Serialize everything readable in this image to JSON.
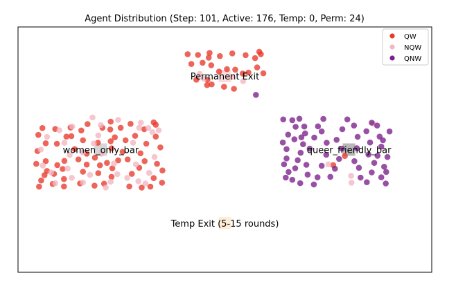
{
  "chart_data": {
    "type": "scatter",
    "title": "Agent Distribution (Step: 101, Active: 176, Temp: 0, Perm: 24)",
    "xlabel": "",
    "ylabel": "",
    "xlim": [
      0,
      100
    ],
    "ylim": [
      0,
      100
    ],
    "grid": false,
    "legend": {
      "placement": "top-right",
      "entries": [
        {
          "label": "QW",
          "color": "#e8392b"
        },
        {
          "label": "NQW",
          "color": "#f4b6c2"
        },
        {
          "label": "QNW",
          "color": "#7b1f8a"
        }
      ]
    },
    "regions": [
      {
        "label": "Permanent Exit",
        "x": 50,
        "y": 80,
        "color": "#f8d0d0"
      },
      {
        "label": "women_only_bar",
        "x": 20,
        "y": 50,
        "color": "#c8c8c8"
      },
      {
        "label": "queer_friendly_bar",
        "x": 80,
        "y": 50,
        "color": "#a0a0a0"
      },
      {
        "label": "Temp Exit (5-15 rounds)",
        "x": 50,
        "y": 20,
        "color": "#fde6c8"
      }
    ],
    "series": [
      {
        "name": "QW",
        "color": "#e8392b",
        "points": [
          [
            41.0,
            88.9
          ],
          [
            43.5,
            88.6
          ],
          [
            46.1,
            87.5
          ],
          [
            46.3,
            89.4
          ],
          [
            48.8,
            88.1
          ],
          [
            51.8,
            89.2
          ],
          [
            55.0,
            88.5
          ],
          [
            57.3,
            87.3
          ],
          [
            58.3,
            89.9
          ],
          [
            58.7,
            88.9
          ],
          [
            41.9,
            84.9
          ],
          [
            44.6,
            85.4
          ],
          [
            46.7,
            84.4
          ],
          [
            48.6,
            81.8
          ],
          [
            50.5,
            82.8
          ],
          [
            52.5,
            82.6
          ],
          [
            54.3,
            81.0
          ],
          [
            55.7,
            81.4
          ],
          [
            57.8,
            83.5
          ],
          [
            59.3,
            81.1
          ],
          [
            43.1,
            78.5
          ],
          [
            45.8,
            78.5
          ],
          [
            46.8,
            76.6
          ],
          [
            49.8,
            75.6
          ],
          [
            52.2,
            74.8
          ],
          [
            45.7,
            76.3
          ],
          [
            22.4,
            61.4
          ],
          [
            22.3,
            58.2
          ],
          [
            22.4,
            53.4
          ],
          [
            22.6,
            50.5
          ],
          [
            21.5,
            44.6
          ],
          [
            22.8,
            42.4
          ],
          [
            19.4,
            40.4
          ],
          [
            19.8,
            43.6
          ],
          [
            18.6,
            46.7
          ],
          [
            19.3,
            52.8
          ],
          [
            20.4,
            58.9
          ],
          [
            16.8,
            60.4
          ],
          [
            15.3,
            57.8
          ],
          [
            15.7,
            53.8
          ],
          [
            16.6,
            48.3
          ],
          [
            16.6,
            43.9
          ],
          [
            15.7,
            41.0
          ],
          [
            14.6,
            46.0
          ],
          [
            13.7,
            50.2
          ],
          [
            12.9,
            55.5
          ],
          [
            12.7,
            59.0
          ],
          [
            11.7,
            55.3
          ],
          [
            11.2,
            45.4
          ],
          [
            10.8,
            42.1
          ],
          [
            11.1,
            38.0
          ],
          [
            8.7,
            40.1
          ],
          [
            9.5,
            43.7
          ],
          [
            9.4,
            52.4
          ],
          [
            9.0,
            58.4
          ],
          [
            5.9,
            58.8
          ],
          [
            6.7,
            52.6
          ],
          [
            6.7,
            45.3
          ],
          [
            7.0,
            41.3
          ],
          [
            5.6,
            37.4
          ],
          [
            5.1,
            34.9
          ],
          [
            6.4,
            39.6
          ],
          [
            4.4,
            44.2
          ],
          [
            4.7,
            49.4
          ],
          [
            22.6,
            38.9
          ],
          [
            24.2,
            45.6
          ],
          [
            23.4,
            55.0
          ],
          [
            25.3,
            49.1
          ],
          [
            26.0,
            53.8
          ],
          [
            24.8,
            58.9
          ],
          [
            26.5,
            46.0
          ],
          [
            27.5,
            40.1
          ],
          [
            27.2,
            60.5
          ],
          [
            28.3,
            55.6
          ],
          [
            29.6,
            48.5
          ],
          [
            29.3,
            42.6
          ],
          [
            30.5,
            58.3
          ],
          [
            31.0,
            52.4
          ],
          [
            30.6,
            45.3
          ],
          [
            32.8,
            61.1
          ],
          [
            32.8,
            38.4
          ],
          [
            33.6,
            44.2
          ],
          [
            33.3,
            55.3
          ],
          [
            34.4,
            50.9
          ],
          [
            33.3,
            60.1
          ],
          [
            34.9,
            41.5
          ],
          [
            34.8,
            36.5
          ],
          [
            32.0,
            34.9
          ],
          [
            29.9,
            34.5
          ],
          [
            26.9,
            35.0
          ],
          [
            20.8,
            36.1
          ],
          [
            18.5,
            35.3
          ],
          [
            15.0,
            36.2
          ],
          [
            11.1,
            35.0
          ],
          [
            8.4,
            36.0
          ],
          [
            4.9,
            56.0
          ],
          [
            76.2,
            43.7
          ],
          [
            79.0,
            47.4
          ]
        ]
      },
      {
        "name": "NQW",
        "color": "#f4b6c2",
        "points": [
          [
            44.9,
            78.9
          ],
          [
            51.7,
            79.5
          ],
          [
            54.4,
            77.9
          ],
          [
            43.9,
            80.9
          ],
          [
            24.2,
            62.1
          ],
          [
            29.7,
            61.0
          ],
          [
            31.5,
            58.8
          ],
          [
            32.5,
            57.1
          ],
          [
            29.3,
            58.9
          ],
          [
            19.4,
            55.8
          ],
          [
            13.1,
            59.4
          ],
          [
            12.0,
            42.3
          ],
          [
            15.7,
            36.6
          ],
          [
            21.2,
            34.5
          ],
          [
            22.4,
            36.9
          ],
          [
            29.1,
            37.1
          ],
          [
            8.0,
            40.7
          ],
          [
            7.0,
            55.2
          ],
          [
            11.2,
            52.8
          ],
          [
            20.2,
            48.3
          ],
          [
            15.7,
            48.9
          ],
          [
            27.8,
            52.8
          ],
          [
            31.7,
            40.5
          ],
          [
            9.0,
            36.3
          ],
          [
            18.0,
            63.1
          ],
          [
            24.0,
            40.0
          ],
          [
            28.5,
            44.0
          ],
          [
            33.0,
            47.0
          ],
          [
            5.5,
            50.0
          ],
          [
            13.0,
            38.5
          ],
          [
            17.4,
            39.7
          ],
          [
            26.4,
            38.5
          ],
          [
            30.8,
            36.2
          ],
          [
            12.5,
            47.8
          ],
          [
            20.0,
            60.0
          ],
          [
            10.0,
            57.9
          ],
          [
            34.0,
            57.9
          ],
          [
            6.0,
            43.5
          ],
          [
            23.2,
            44.3
          ],
          [
            18.3,
            52.5
          ],
          [
            75.0,
            44.0
          ],
          [
            85.8,
            60.6
          ],
          [
            80.6,
            36.5
          ],
          [
            80.5,
            39.3
          ]
        ]
      },
      {
        "name": "QNW",
        "color": "#7b1f8a",
        "points": [
          [
            64.1,
            62.3
          ],
          [
            66.3,
            62.0
          ],
          [
            67.1,
            59.3
          ],
          [
            68.0,
            62.6
          ],
          [
            69.2,
            59.4
          ],
          [
            69.4,
            56.6
          ],
          [
            68.5,
            55.0
          ],
          [
            66.8,
            54.2
          ],
          [
            65.3,
            56.1
          ],
          [
            64.0,
            52.9
          ],
          [
            64.9,
            50.2
          ],
          [
            64.9,
            46.4
          ],
          [
            64.3,
            44.0
          ],
          [
            65.4,
            40.9
          ],
          [
            64.7,
            38.6
          ],
          [
            66.3,
            37.7
          ],
          [
            67.0,
            42.4
          ],
          [
            67.6,
            45.7
          ],
          [
            68.3,
            48.7
          ],
          [
            68.9,
            52.2
          ],
          [
            70.5,
            50.4
          ],
          [
            71.6,
            54.9
          ],
          [
            72.5,
            59.5
          ],
          [
            73.8,
            62.5
          ],
          [
            73.4,
            57.4
          ],
          [
            74.6,
            52.8
          ],
          [
            74.5,
            47.9
          ],
          [
            73.4,
            43.4
          ],
          [
            72.4,
            38.7
          ],
          [
            71.5,
            35.8
          ],
          [
            70.0,
            39.8
          ],
          [
            69.7,
            43.8
          ],
          [
            68.2,
            36.3
          ],
          [
            75.5,
            38.9
          ],
          [
            76.6,
            42.2
          ],
          [
            77.6,
            46.2
          ],
          [
            78.3,
            50.4
          ],
          [
            77.0,
            54.0
          ],
          [
            78.4,
            58.3
          ],
          [
            79.6,
            62.3
          ],
          [
            81.2,
            59.8
          ],
          [
            82.1,
            55.2
          ],
          [
            81.9,
            50.6
          ],
          [
            81.3,
            45.3
          ],
          [
            82.4,
            42.6
          ],
          [
            82.8,
            38.6
          ],
          [
            84.3,
            36.7
          ],
          [
            85.5,
            40.7
          ],
          [
            86.1,
            44.6
          ],
          [
            84.7,
            48.0
          ],
          [
            85.1,
            52.9
          ],
          [
            84.2,
            57.5
          ],
          [
            86.8,
            59.8
          ],
          [
            87.4,
            55.3
          ],
          [
            87.8,
            51.2
          ],
          [
            86.9,
            47.5
          ],
          [
            88.5,
            43.0
          ],
          [
            87.8,
            38.7
          ],
          [
            88.9,
            36.2
          ],
          [
            89.0,
            40.9
          ],
          [
            89.3,
            47.0
          ],
          [
            88.2,
            53.8
          ],
          [
            89.8,
            57.4
          ],
          [
            85.5,
            61.0
          ],
          [
            57.5,
            72.3
          ]
        ]
      }
    ]
  }
}
